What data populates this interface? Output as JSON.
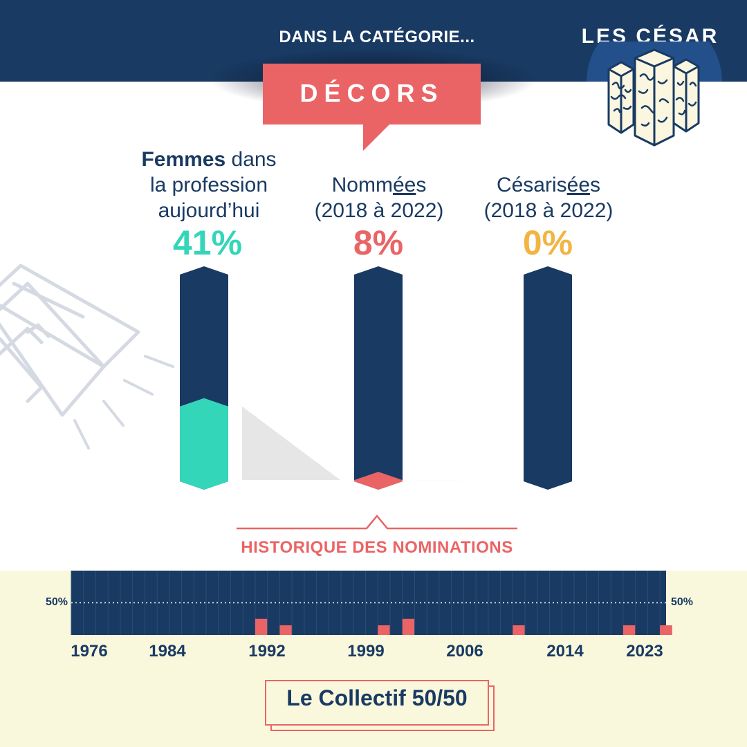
{
  "header": {
    "category_intro": "DANS LA CATÉGORIE...",
    "brand": "LES CÉSAR",
    "category": "DÉCORS"
  },
  "colors": {
    "navy": "#193a63",
    "coral": "#ea6466",
    "teal": "#33d6b9",
    "gold": "#f2b544",
    "cream": "#faf8dc",
    "shade": "#e6e6e6"
  },
  "columns": [
    {
      "label_bold": "Femmes",
      "label_rest": " dans",
      "label_line2": "la profession",
      "label_line3": "aujourd’hui",
      "value": "41%"
    },
    {
      "label_pre": "Nomm",
      "label_underlined": "ée",
      "label_post": "s",
      "label_line2": "(2018 à 2022)",
      "value": "8%"
    },
    {
      "label_pre": "Césaris",
      "label_underlined": "ée",
      "label_post": "s",
      "label_line2": "(2018 à 2022)",
      "value": "0%"
    }
  ],
  "history": {
    "title": "HISTORIQUE DES NOMINATIONS",
    "reference_label_left": "50%",
    "reference_label_right": "50%",
    "year_ticks": [
      "1976",
      "1984",
      "1992",
      "1999",
      "2006",
      "2014",
      "2023"
    ]
  },
  "footer": {
    "text": "Le Collectif 50/50"
  },
  "chart_data": [
    {
      "type": "bar",
      "categories": [
        "Femmes dans la profession aujourd’hui",
        "Nommées (2018 à 2022)",
        "Césarisées (2018 à 2022)"
      ],
      "values": [
        41,
        8,
        0
      ],
      "ylim": [
        0,
        100
      ]
    },
    {
      "type": "bar",
      "x": [
        1976,
        1977,
        1978,
        1979,
        1980,
        1981,
        1982,
        1983,
        1984,
        1985,
        1986,
        1987,
        1988,
        1989,
        1990,
        1991,
        1992,
        1993,
        1994,
        1995,
        1996,
        1997,
        1998,
        1999,
        2000,
        2001,
        2002,
        2003,
        2004,
        2005,
        2006,
        2007,
        2008,
        2009,
        2010,
        2011,
        2012,
        2013,
        2014,
        2015,
        2016,
        2017,
        2018,
        2019,
        2020,
        2021,
        2022,
        2023,
        2024
      ],
      "values": [
        0,
        0,
        0,
        0,
        0,
        0,
        0,
        0,
        0,
        0,
        0,
        0,
        0,
        0,
        0,
        25,
        0,
        15,
        0,
        0,
        0,
        0,
        0,
        0,
        0,
        15,
        0,
        25,
        0,
        0,
        0,
        0,
        0,
        0,
        0,
        0,
        15,
        0,
        0,
        0,
        0,
        0,
        0,
        0,
        0,
        15,
        0,
        0,
        15
      ],
      "reference_line": 50,
      "ylim": [
        0,
        100
      ]
    }
  ]
}
